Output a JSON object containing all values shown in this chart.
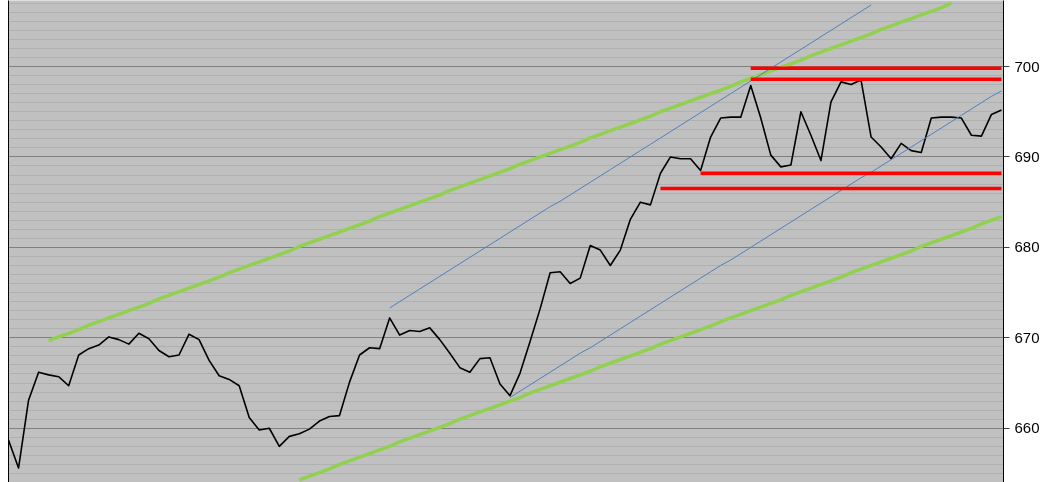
{
  "chart_data": {
    "type": "line",
    "ylim": [
      654.0,
      707.3
    ],
    "yticks": [
      660,
      670,
      680,
      690,
      700
    ],
    "grid": "y",
    "tick_labels": "y",
    "categories": [
      null,
      null,
      null,
      null,
      null,
      null,
      null,
      null,
      null,
      null,
      null,
      null,
      null,
      null,
      null,
      null,
      null,
      null,
      null,
      null,
      null,
      null,
      null,
      null,
      null,
      null,
      null,
      null,
      null,
      null,
      null,
      null,
      null,
      null,
      null,
      null,
      null,
      null,
      null,
      null,
      null,
      null,
      null,
      null,
      null,
      null,
      null,
      null,
      null,
      null,
      null,
      null,
      null,
      null,
      null,
      null,
      null,
      null,
      null,
      null,
      null,
      null,
      null,
      null,
      null,
      null,
      null,
      null,
      null,
      null,
      null,
      null,
      null,
      null,
      null,
      null,
      null,
      null,
      null,
      null,
      null,
      null,
      null,
      null,
      null,
      null,
      null,
      null,
      null,
      null,
      null,
      null,
      null,
      null,
      null,
      null,
      null,
      null,
      null,
      null
    ],
    "series": [
      {
        "color": "#000000",
        "values": [
          658.7,
          655.6,
          663.1,
          666.2,
          665.9,
          665.7,
          664.7,
          668.1,
          668.8,
          669.2,
          670.1,
          669.8,
          669.3,
          670.5,
          669.9,
          668.6,
          667.9,
          668.1,
          670.4,
          669.8,
          667.5,
          665.8,
          665.4,
          664.7,
          661.2,
          659.8,
          660.0,
          658.0,
          659.1,
          659.4,
          659.9,
          660.8,
          661.3,
          661.4,
          665.1,
          668.1,
          668.9,
          668.8,
          672.2,
          670.3,
          670.8,
          670.7,
          671.1,
          669.8,
          668.3,
          666.7,
          666.2,
          667.7,
          667.8,
          664.9,
          663.6,
          666.1,
          669.6,
          673.2,
          677.2,
          677.3,
          676.0,
          676.6,
          680.2,
          679.7,
          678.0,
          679.7,
          683.1,
          685.0,
          684.7,
          688.2,
          690.0,
          689.8,
          689.8,
          688.5,
          692.2,
          694.3,
          694.4,
          694.4,
          697.9,
          694.3,
          690.2,
          688.9,
          689.1,
          695.0,
          692.4,
          689.6,
          696.1,
          698.3,
          698.0,
          698.5,
          692.2,
          691.1,
          689.8,
          691.5,
          690.7,
          690.5,
          694.3,
          694.4,
          694.4,
          694.3,
          692.4,
          692.3,
          694.7,
          695.2
        ]
      },
      {
        "color": "#92d050",
        "values": [
          null,
          null,
          null,
          null,
          669.7,
          670.1,
          670.5,
          670.9,
          671.4,
          671.8,
          672.2,
          672.6,
          673.0,
          673.4,
          673.8,
          674.3,
          674.7,
          675.1,
          675.5,
          675.9,
          676.3,
          676.7,
          677.2,
          677.6,
          678.0,
          678.4,
          678.8,
          679.2,
          679.6,
          680.1,
          680.5,
          680.9,
          681.3,
          681.7,
          682.1,
          682.5,
          682.9,
          683.4,
          683.8,
          684.2,
          684.6,
          685.0,
          685.4,
          685.8,
          686.3,
          686.7,
          687.1,
          687.5,
          687.9,
          688.3,
          688.7,
          689.2,
          689.6,
          690.0,
          690.4,
          690.8,
          691.2,
          691.6,
          692.1,
          692.5,
          692.9,
          693.3,
          693.7,
          694.1,
          694.5,
          695.0,
          695.4,
          695.8,
          696.2,
          696.6,
          697.0,
          697.4,
          697.8,
          698.3,
          698.7,
          699.1,
          699.5,
          699.9,
          700.3,
          700.7,
          701.2,
          701.6,
          702.0,
          702.4,
          702.8,
          703.2,
          703.6,
          704.1,
          704.5,
          704.9,
          705.3,
          705.7,
          706.1,
          706.5,
          707.0,
          null,
          null,
          null,
          null,
          null
        ]
      },
      {
        "color": "#92d050",
        "values": [
          null,
          null,
          null,
          null,
          null,
          null,
          null,
          null,
          null,
          null,
          null,
          null,
          null,
          null,
          null,
          null,
          null,
          null,
          null,
          null,
          null,
          null,
          null,
          null,
          null,
          null,
          null,
          null,
          null,
          654.3,
          654.7,
          655.1,
          655.5,
          656.0,
          656.4,
          656.8,
          657.2,
          657.6,
          658.0,
          658.5,
          658.9,
          659.3,
          659.7,
          660.1,
          660.5,
          661.0,
          661.4,
          661.8,
          662.2,
          662.6,
          663.0,
          663.4,
          663.9,
          664.3,
          664.7,
          665.1,
          665.5,
          665.9,
          666.3,
          666.8,
          667.2,
          667.6,
          668.0,
          668.4,
          668.8,
          669.3,
          669.7,
          670.1,
          670.5,
          670.9,
          671.3,
          671.8,
          672.2,
          672.6,
          673.0,
          673.4,
          673.8,
          674.2,
          674.7,
          675.1,
          675.5,
          675.9,
          676.3,
          676.7,
          677.2,
          677.6,
          678.0,
          678.4,
          678.8,
          679.2,
          679.6,
          680.1,
          680.5,
          680.9,
          681.3,
          681.7,
          682.1,
          682.6,
          683.0,
          683.4
        ]
      },
      {
        "color": "#4f81bd",
        "values": [
          null,
          null,
          null,
          null,
          null,
          null,
          null,
          null,
          null,
          null,
          null,
          null,
          null,
          null,
          null,
          null,
          null,
          null,
          null,
          null,
          null,
          null,
          null,
          null,
          null,
          null,
          null,
          null,
          null,
          null,
          null,
          null,
          null,
          null,
          null,
          null,
          null,
          null,
          673.3,
          674.0,
          674.7,
          675.4,
          676.1,
          676.8,
          677.5,
          678.2,
          678.9,
          679.6,
          680.3,
          681.0,
          681.7,
          682.4,
          683.1,
          683.8,
          684.5,
          685.1,
          685.8,
          686.5,
          687.2,
          687.9,
          688.6,
          689.3,
          690.0,
          690.7,
          691.4,
          692.1,
          692.8,
          693.5,
          694.2,
          694.9,
          695.6,
          696.3,
          697.0,
          697.7,
          698.4,
          699.1,
          699.8,
          700.5,
          701.2,
          701.9,
          702.6,
          703.3,
          704.0,
          704.7,
          705.4,
          706.1,
          706.8,
          null,
          null,
          null,
          null,
          null,
          null,
          null,
          null,
          null,
          null,
          null,
          null,
          null
        ]
      },
      {
        "color": "#4f81bd",
        "values": [
          null,
          null,
          null,
          null,
          null,
          null,
          null,
          null,
          null,
          null,
          null,
          null,
          null,
          null,
          null,
          null,
          null,
          null,
          null,
          null,
          null,
          null,
          null,
          null,
          null,
          null,
          null,
          null,
          null,
          null,
          null,
          null,
          null,
          null,
          null,
          null,
          null,
          null,
          null,
          null,
          null,
          null,
          null,
          null,
          null,
          null,
          null,
          null,
          null,
          null,
          663.4,
          664.1,
          664.8,
          665.5,
          666.2,
          666.9,
          667.6,
          668.3,
          668.9,
          669.6,
          670.3,
          671.0,
          671.7,
          672.4,
          673.1,
          673.8,
          674.5,
          675.2,
          675.9,
          676.6,
          677.3,
          678.0,
          678.6,
          679.3,
          680.0,
          680.7,
          681.4,
          682.1,
          682.8,
          683.5,
          684.2,
          684.9,
          685.6,
          686.3,
          687.0,
          687.7,
          688.3,
          689.0,
          689.7,
          690.4,
          691.1,
          691.8,
          692.5,
          693.2,
          693.9,
          694.6,
          695.3,
          696.0,
          696.7,
          697.3
        ]
      },
      {
        "color": "#ff0000",
        "values": [
          null,
          null,
          null,
          null,
          null,
          null,
          null,
          null,
          null,
          null,
          null,
          null,
          null,
          null,
          null,
          null,
          null,
          null,
          null,
          null,
          null,
          null,
          null,
          null,
          null,
          null,
          null,
          null,
          null,
          null,
          null,
          null,
          null,
          null,
          null,
          null,
          null,
          null,
          null,
          null,
          null,
          null,
          null,
          null,
          null,
          null,
          null,
          null,
          null,
          null,
          null,
          null,
          null,
          null,
          null,
          null,
          null,
          null,
          null,
          null,
          null,
          null,
          null,
          null,
          null,
          null,
          null,
          null,
          null,
          null,
          null,
          null,
          null,
          null,
          699.8,
          699.8,
          699.8,
          699.8,
          699.8,
          699.8,
          699.8,
          699.8,
          699.8,
          699.8,
          699.8,
          699.8,
          699.8,
          699.8,
          699.8,
          699.8,
          699.8,
          699.8,
          699.8,
          699.8,
          699.8,
          699.8,
          699.8,
          699.8,
          699.8,
          699.8
        ]
      },
      {
        "color": "#ff0000",
        "values": [
          null,
          null,
          null,
          null,
          null,
          null,
          null,
          null,
          null,
          null,
          null,
          null,
          null,
          null,
          null,
          null,
          null,
          null,
          null,
          null,
          null,
          null,
          null,
          null,
          null,
          null,
          null,
          null,
          null,
          null,
          null,
          null,
          null,
          null,
          null,
          null,
          null,
          null,
          null,
          null,
          null,
          null,
          null,
          null,
          null,
          null,
          null,
          null,
          null,
          null,
          null,
          null,
          null,
          null,
          null,
          null,
          null,
          null,
          null,
          null,
          null,
          null,
          null,
          null,
          null,
          null,
          null,
          null,
          null,
          null,
          null,
          null,
          null,
          null,
          698.6,
          698.6,
          698.6,
          698.6,
          698.6,
          698.6,
          698.6,
          698.6,
          698.6,
          698.6,
          698.6,
          698.6,
          698.6,
          698.6,
          698.6,
          698.6,
          698.6,
          698.6,
          698.6,
          698.6,
          698.6,
          698.6,
          698.6,
          698.6,
          698.6,
          698.6
        ]
      },
      {
        "color": "#ff0000",
        "values": [
          null,
          null,
          null,
          null,
          null,
          null,
          null,
          null,
          null,
          null,
          null,
          null,
          null,
          null,
          null,
          null,
          null,
          null,
          null,
          null,
          null,
          null,
          null,
          null,
          null,
          null,
          null,
          null,
          null,
          null,
          null,
          null,
          null,
          null,
          null,
          null,
          null,
          null,
          null,
          null,
          null,
          null,
          null,
          null,
          null,
          null,
          null,
          null,
          null,
          null,
          null,
          null,
          null,
          null,
          null,
          null,
          null,
          null,
          null,
          null,
          null,
          null,
          null,
          null,
          null,
          null,
          null,
          null,
          null,
          688.2,
          688.2,
          688.2,
          688.2,
          688.2,
          688.2,
          688.2,
          688.2,
          688.2,
          688.2,
          688.2,
          688.2,
          688.2,
          688.2,
          688.2,
          688.2,
          688.2,
          688.2,
          688.2,
          688.2,
          688.2,
          688.2,
          688.2,
          688.2,
          688.2,
          688.2,
          688.2,
          688.2,
          688.2,
          688.2,
          688.2
        ]
      },
      {
        "color": "#ff0000",
        "values": [
          null,
          null,
          null,
          null,
          null,
          null,
          null,
          null,
          null,
          null,
          null,
          null,
          null,
          null,
          null,
          null,
          null,
          null,
          null,
          null,
          null,
          null,
          null,
          null,
          null,
          null,
          null,
          null,
          null,
          null,
          null,
          null,
          null,
          null,
          null,
          null,
          null,
          null,
          null,
          null,
          null,
          null,
          null,
          null,
          null,
          null,
          null,
          null,
          null,
          null,
          null,
          null,
          null,
          null,
          null,
          null,
          null,
          null,
          null,
          null,
          null,
          null,
          null,
          null,
          null,
          686.5,
          686.5,
          686.5,
          686.5,
          686.5,
          686.5,
          686.5,
          686.5,
          686.5,
          686.5,
          686.5,
          686.5,
          686.5,
          686.5,
          686.5,
          686.5,
          686.5,
          686.5,
          686.5,
          686.5,
          686.5,
          686.5,
          686.5,
          686.5,
          686.5,
          686.5,
          686.5,
          686.5,
          686.5,
          686.5,
          686.5,
          686.5,
          686.5,
          686.5,
          686.5
        ]
      }
    ]
  }
}
